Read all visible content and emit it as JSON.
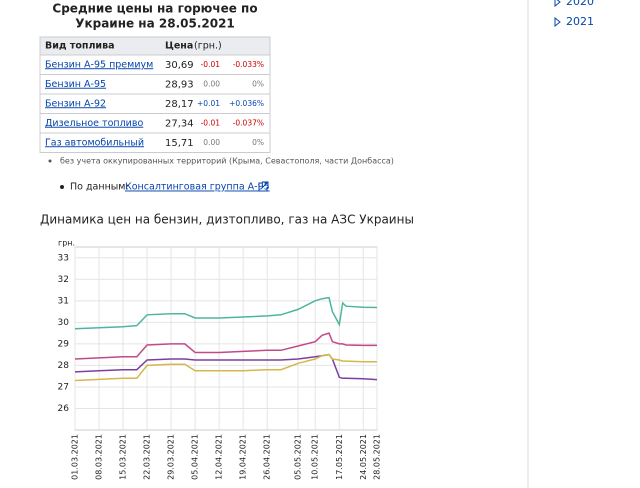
{
  "header": {
    "title_lines": [
      "Средние цены на горючее по",
      "Украине на 28.05.2021"
    ]
  },
  "sidebar": {
    "items": [
      "2020",
      "2021"
    ]
  },
  "table": {
    "header": [
      "Вид топлива",
      "Цена",
      "(грн.)"
    ],
    "rows": [
      [
        "Бензин А-95 премиум",
        "30,69",
        "-0.01",
        "-0.033%"
      ],
      [
        "Бензин А-95",
        "28,93",
        "0.00",
        "0%"
      ],
      [
        "Бензин А-92",
        "28,17",
        "+0.01",
        "+0.036%"
      ],
      [
        "Дизельное топливо",
        "27,34",
        "-0.01",
        "-0.037%"
      ],
      [
        "Газ автомобильный",
        "15,71",
        "0.00",
        "0%"
      ]
    ]
  },
  "note": "без учета оккупированных территорий (Крыма, Севастополя, части Донбасса)",
  "source": {
    "prefix": "По данным:",
    "link": "Консалтинговая группа А-95"
  },
  "chart_data": {
    "type": "line",
    "title": "Динамика цен на бензин, дизтопливо, газ на АЗС Украины",
    "ylabel": "грн.",
    "x": [
      "01.03.2021",
      "08.03.2021",
      "15.03.2021",
      "19.03.2021",
      "22.03.2021",
      "29.03.2021",
      "02.04.2021",
      "05.04.2021",
      "12.04.2021",
      "19.04.2021",
      "26.04.2021",
      "30.04.2021",
      "05.05.2021",
      "10.05.2021",
      "12.05.2021",
      "14.05.2021",
      "15.05.2021",
      "17.05.2021",
      "18.05.2021",
      "19.05.2021",
      "24.05.2021",
      "28.05.2021"
    ],
    "series": [
      {
        "color": "#4db6a0",
        "values": [
          29.7,
          29.75,
          29.8,
          29.85,
          30.35,
          30.4,
          30.4,
          30.2,
          30.2,
          30.25,
          30.3,
          30.35,
          30.6,
          31.0,
          31.1,
          31.15,
          30.5,
          29.9,
          30.9,
          30.75,
          30.7,
          30.69
        ]
      },
      {
        "color": "#c04a8a",
        "values": [
          28.3,
          28.35,
          28.4,
          28.4,
          28.95,
          29.0,
          29.0,
          28.6,
          28.6,
          28.65,
          28.7,
          28.7,
          28.9,
          29.1,
          29.4,
          29.5,
          29.1,
          29.0,
          29.0,
          28.95,
          28.93,
          28.93
        ]
      },
      {
        "color": "#7b3fa0",
        "values": [
          27.7,
          27.75,
          27.8,
          27.8,
          28.25,
          28.3,
          28.3,
          28.25,
          28.25,
          28.25,
          28.25,
          28.25,
          28.3,
          28.4,
          28.45,
          28.5,
          28.3,
          27.45,
          27.4,
          27.4,
          27.38,
          27.34
        ]
      },
      {
        "color": "#d4b84a",
        "values": [
          27.3,
          27.35,
          27.4,
          27.4,
          28.0,
          28.05,
          28.05,
          27.75,
          27.75,
          27.75,
          27.8,
          27.8,
          28.1,
          28.3,
          28.45,
          28.5,
          28.3,
          28.25,
          28.2,
          28.2,
          28.17,
          28.17
        ]
      }
    ],
    "xlim": [
      "01.03.2021",
      "28.05.2021"
    ],
    "xticks": [
      "01.03.2021",
      "08.03.2021",
      "15.03.2021",
      "22.03.2021",
      "29.03.2021",
      "05.04.2021",
      "12.04.2021",
      "19.04.2021",
      "26.04.2021",
      "05.05.2021",
      "10.05.2021",
      "17.05.2021",
      "24.05.2021",
      "28.05.2021"
    ],
    "ylim": [
      25,
      33.5
    ],
    "yticks": [
      26,
      27,
      28,
      29,
      30,
      31,
      32,
      33
    ],
    "grid": true
  }
}
